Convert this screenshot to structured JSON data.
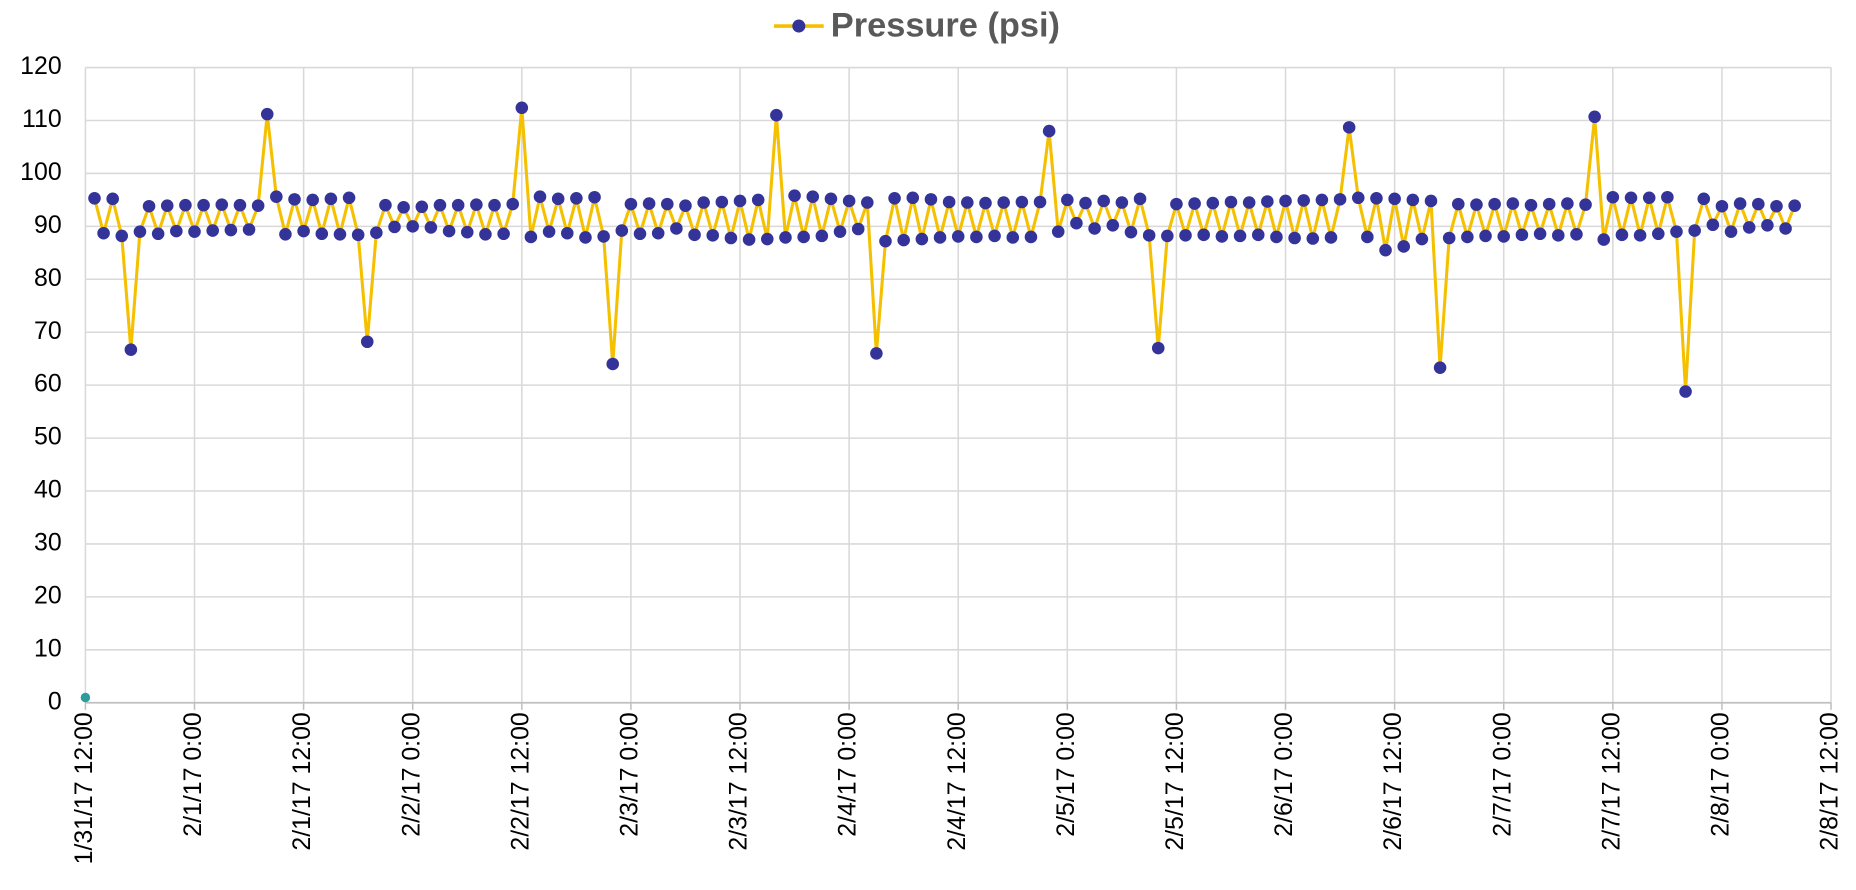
{
  "chart_data": {
    "type": "line",
    "legend": "top",
    "grid": true,
    "xlim": [
      "1/31/17 12:00",
      "2/8/17 12:00"
    ],
    "xticks": [
      "1/31/17 12:00",
      "2/1/17 0:00",
      "2/1/17 12:00",
      "2/2/17 0:00",
      "2/2/17 12:00",
      "2/3/17 0:00",
      "2/3/17 12:00",
      "2/4/17 0:00",
      "2/4/17 12:00",
      "2/5/17 0:00",
      "2/5/17 12:00",
      "2/6/17 0:00",
      "2/6/17 12:00",
      "2/7/17 0:00",
      "2/7/17 12:00",
      "2/8/17 0:00",
      "2/8/17 12:00"
    ],
    "ylim": [
      0,
      120
    ],
    "yticks": [
      0,
      10,
      20,
      30,
      40,
      50,
      60,
      70,
      80,
      90,
      100,
      110,
      120
    ],
    "series": [
      {
        "name": "Pressure (psi)",
        "color": "#f5c000",
        "marker_color": "#33339a",
        "x": [
          "1/31/17 13:00",
          "1/31/17 14:00",
          "1/31/17 15:00",
          "1/31/17 16:00",
          "1/31/17 17:00",
          "1/31/17 18:00",
          "1/31/17 19:00",
          "1/31/17 20:00",
          "1/31/17 21:00",
          "1/31/17 22:00",
          "1/31/17 23:00",
          "2/1/17 0:00",
          "2/1/17 1:00",
          "2/1/17 2:00",
          "2/1/17 3:00",
          "2/1/17 4:00",
          "2/1/17 5:00",
          "2/1/17 6:00",
          "2/1/17 7:00",
          "2/1/17 8:00",
          "2/1/17 9:00",
          "2/1/17 10:00",
          "2/1/17 11:00",
          "2/1/17 12:00",
          "2/1/17 13:00",
          "2/1/17 14:00",
          "2/1/17 15:00",
          "2/1/17 16:00",
          "2/1/17 17:00",
          "2/1/17 18:00",
          "2/1/17 19:00",
          "2/1/17 20:00",
          "2/1/17 21:00",
          "2/1/17 22:00",
          "2/1/17 23:00",
          "2/2/17 0:00",
          "2/2/17 1:00",
          "2/2/17 2:00",
          "2/2/17 3:00",
          "2/2/17 4:00",
          "2/2/17 5:00",
          "2/2/17 6:00",
          "2/2/17 7:00",
          "2/2/17 8:00",
          "2/2/17 9:00",
          "2/2/17 10:00",
          "2/2/17 11:00",
          "2/2/17 12:00",
          "2/2/17 13:00",
          "2/2/17 14:00",
          "2/2/17 15:00",
          "2/2/17 16:00",
          "2/2/17 17:00",
          "2/2/17 18:00",
          "2/2/17 19:00",
          "2/2/17 20:00",
          "2/2/17 21:00",
          "2/2/17 22:00",
          "2/2/17 23:00",
          "2/3/17 0:00",
          "2/3/17 1:00",
          "2/3/17 2:00",
          "2/3/17 3:00",
          "2/3/17 4:00",
          "2/3/17 5:00",
          "2/3/17 6:00",
          "2/3/17 7:00",
          "2/3/17 8:00",
          "2/3/17 9:00",
          "2/3/17 10:00",
          "2/3/17 11:00",
          "2/3/17 12:00",
          "2/3/17 13:00",
          "2/3/17 14:00",
          "2/3/17 15:00",
          "2/3/17 16:00",
          "2/3/17 17:00",
          "2/3/17 18:00",
          "2/3/17 19:00",
          "2/3/17 20:00",
          "2/3/17 21:00",
          "2/3/17 22:00",
          "2/3/17 23:00",
          "2/4/17 0:00",
          "2/4/17 1:00",
          "2/4/17 2:00",
          "2/4/17 3:00",
          "2/4/17 4:00",
          "2/4/17 5:00",
          "2/4/17 6:00",
          "2/4/17 7:00",
          "2/4/17 8:00",
          "2/4/17 9:00",
          "2/4/17 10:00",
          "2/4/17 11:00",
          "2/4/17 12:00",
          "2/4/17 13:00",
          "2/4/17 14:00",
          "2/4/17 15:00",
          "2/4/17 16:00",
          "2/4/17 17:00",
          "2/4/17 18:00",
          "2/4/17 19:00",
          "2/4/17 20:00",
          "2/4/17 21:00",
          "2/4/17 22:00",
          "2/4/17 23:00",
          "2/5/17 0:00",
          "2/5/17 1:00",
          "2/5/17 2:00",
          "2/5/17 3:00",
          "2/5/17 4:00",
          "2/5/17 5:00",
          "2/5/17 6:00",
          "2/5/17 7:00",
          "2/5/17 8:00",
          "2/5/17 9:00",
          "2/5/17 10:00",
          "2/5/17 11:00",
          "2/5/17 12:00",
          "2/5/17 13:00",
          "2/5/17 14:00",
          "2/5/17 15:00",
          "2/5/17 16:00",
          "2/5/17 17:00",
          "2/5/17 18:00",
          "2/5/17 19:00",
          "2/5/17 20:00",
          "2/5/17 21:00",
          "2/5/17 22:00",
          "2/5/17 23:00",
          "2/6/17 0:00",
          "2/6/17 1:00",
          "2/6/17 2:00",
          "2/6/17 3:00",
          "2/6/17 4:00",
          "2/6/17 5:00",
          "2/6/17 6:00",
          "2/6/17 7:00",
          "2/6/17 8:00",
          "2/6/17 9:00",
          "2/6/17 10:00",
          "2/6/17 11:00",
          "2/6/17 12:00",
          "2/6/17 13:00",
          "2/6/17 14:00",
          "2/6/17 15:00",
          "2/6/17 16:00",
          "2/6/17 17:00",
          "2/6/17 18:00",
          "2/6/17 19:00",
          "2/6/17 20:00",
          "2/6/17 21:00",
          "2/6/17 22:00",
          "2/6/17 23:00",
          "2/7/17 0:00",
          "2/7/17 1:00",
          "2/7/17 2:00",
          "2/7/17 3:00",
          "2/7/17 4:00",
          "2/7/17 5:00",
          "2/7/17 6:00",
          "2/7/17 7:00",
          "2/7/17 8:00",
          "2/7/17 9:00",
          "2/7/17 10:00",
          "2/7/17 11:00",
          "2/7/17 12:00",
          "2/7/17 13:00",
          "2/7/17 14:00",
          "2/7/17 15:00",
          "2/7/17 16:00",
          "2/7/17 17:00",
          "2/7/17 18:00",
          "2/7/17 19:00",
          "2/7/17 20:00",
          "2/7/17 21:00",
          "2/7/17 22:00",
          "2/7/17 23:00",
          "2/8/17 0:00",
          "2/8/17 1:00",
          "2/8/17 2:00",
          "2/8/17 3:00",
          "2/8/17 4:00",
          "2/8/17 5:00",
          "2/8/17 6:00",
          "2/8/17 7:00",
          "2/8/17 8:00"
        ],
        "values": [
          95.3,
          88.7,
          95.2,
          88.2,
          66.7,
          89.0,
          93.8,
          88.6,
          93.9,
          89.1,
          94.0,
          89.0,
          94.0,
          89.2,
          94.1,
          89.3,
          94.0,
          89.4,
          93.9,
          111.2,
          95.6,
          88.5,
          95.1,
          89.1,
          95.0,
          88.6,
          95.2,
          88.5,
          95.4,
          88.4,
          68.2,
          88.8,
          94.0,
          89.9,
          93.6,
          90.0,
          93.7,
          89.8,
          94.0,
          89.1,
          94.0,
          88.9,
          94.1,
          88.5,
          94.0,
          88.6,
          94.2,
          112.4,
          88.0,
          95.6,
          89.0,
          95.2,
          88.7,
          95.3,
          87.9,
          95.5,
          88.1,
          64.0,
          89.2,
          94.2,
          88.6,
          94.3,
          88.7,
          94.2,
          89.6,
          93.9,
          88.4,
          94.5,
          88.3,
          94.6,
          87.8,
          94.8,
          87.5,
          95.0,
          87.6,
          111.0,
          87.9,
          95.8,
          88.0,
          95.6,
          88.2,
          95.2,
          89.0,
          94.8,
          89.5,
          94.5,
          66.0,
          87.2,
          95.3,
          87.4,
          95.4,
          87.6,
          95.1,
          87.9,
          94.6,
          88.1,
          94.5,
          88.0,
          94.4,
          88.2,
          94.5,
          87.9,
          94.6,
          88.0,
          94.6,
          108.0,
          89.0,
          95.0,
          90.6,
          94.4,
          89.6,
          94.8,
          90.2,
          94.5,
          88.9,
          95.2,
          88.3,
          67.0,
          88.2,
          94.2,
          88.3,
          94.3,
          88.4,
          94.4,
          88.1,
          94.6,
          88.2,
          94.5,
          88.4,
          94.7,
          88.0,
          94.8,
          87.8,
          94.9,
          87.7,
          95.0,
          87.9,
          95.1,
          108.7,
          95.4,
          88.0,
          95.3,
          85.5,
          95.2,
          86.2,
          95.0,
          87.6,
          94.8,
          63.3,
          87.8,
          94.2,
          88.0,
          94.1,
          88.2,
          94.2,
          88.1,
          94.3,
          88.4,
          94.0,
          88.6,
          94.2,
          88.3,
          94.3,
          88.5,
          94.1,
          110.7,
          87.5,
          95.5,
          88.4,
          95.4,
          88.3,
          95.4,
          88.6,
          95.5,
          89.0,
          58.8,
          89.2,
          95.2,
          90.3,
          93.8,
          89.0,
          94.3,
          89.8,
          94.2,
          90.2,
          93.8,
          89.6,
          93.9
        ]
      },
      {
        "color": "#2e9c9c",
        "x": [
          "1/31/17 12:00"
        ],
        "values": [
          1
        ]
      }
    ]
  }
}
